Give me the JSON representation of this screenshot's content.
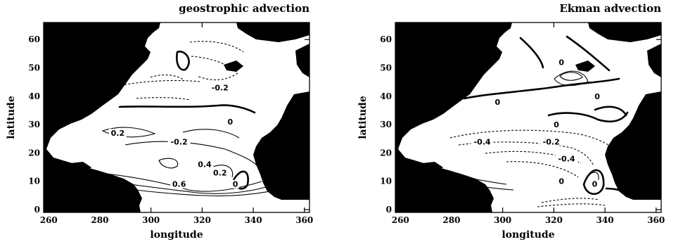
{
  "chart_data": [
    {
      "type": "contour",
      "title": "geostrophic advection",
      "xlabel": "longitude",
      "ylabel": "latitude",
      "xlim": [
        258,
        362
      ],
      "ylim": [
        -1,
        66
      ],
      "xticks": [
        260,
        280,
        300,
        320,
        340,
        360
      ],
      "yticks": [
        0,
        10,
        20,
        30,
        40,
        50,
        60
      ],
      "contour_labels": [
        {
          "text": "-0.2",
          "x": 327,
          "y": 43
        },
        {
          "text": "0",
          "x": 331,
          "y": 31
        },
        {
          "text": "0.2",
          "x": 287,
          "y": 27
        },
        {
          "text": "-0.2",
          "x": 311,
          "y": 24
        },
        {
          "text": "0.4",
          "x": 321,
          "y": 16
        },
        {
          "text": "0.2",
          "x": 327,
          "y": 13
        },
        {
          "text": "0",
          "x": 333,
          "y": 9
        },
        {
          "text": "0.6",
          "x": 311,
          "y": 9
        }
      ]
    },
    {
      "type": "contour",
      "title": "Ekman advection",
      "xlabel": "longitude",
      "ylabel": "latitude",
      "xlim": [
        258,
        362
      ],
      "ylim": [
        -1,
        66
      ],
      "xticks": [
        260,
        280,
        300,
        320,
        340,
        360
      ],
      "yticks": [
        0,
        10,
        20,
        30,
        40,
        50,
        60
      ],
      "contour_labels": [
        {
          "text": "0",
          "x": 323,
          "y": 52
        },
        {
          "text": "0",
          "x": 337,
          "y": 40
        },
        {
          "text": "0",
          "x": 298,
          "y": 38
        },
        {
          "text": "0",
          "x": 321,
          "y": 30
        },
        {
          "text": "-0.4",
          "x": 292,
          "y": 24
        },
        {
          "text": "-0.2",
          "x": 319,
          "y": 24
        },
        {
          "text": "-0.4",
          "x": 325,
          "y": 18
        },
        {
          "text": "0",
          "x": 323,
          "y": 10
        },
        {
          "text": "0",
          "x": 336,
          "y": 9
        }
      ]
    }
  ]
}
